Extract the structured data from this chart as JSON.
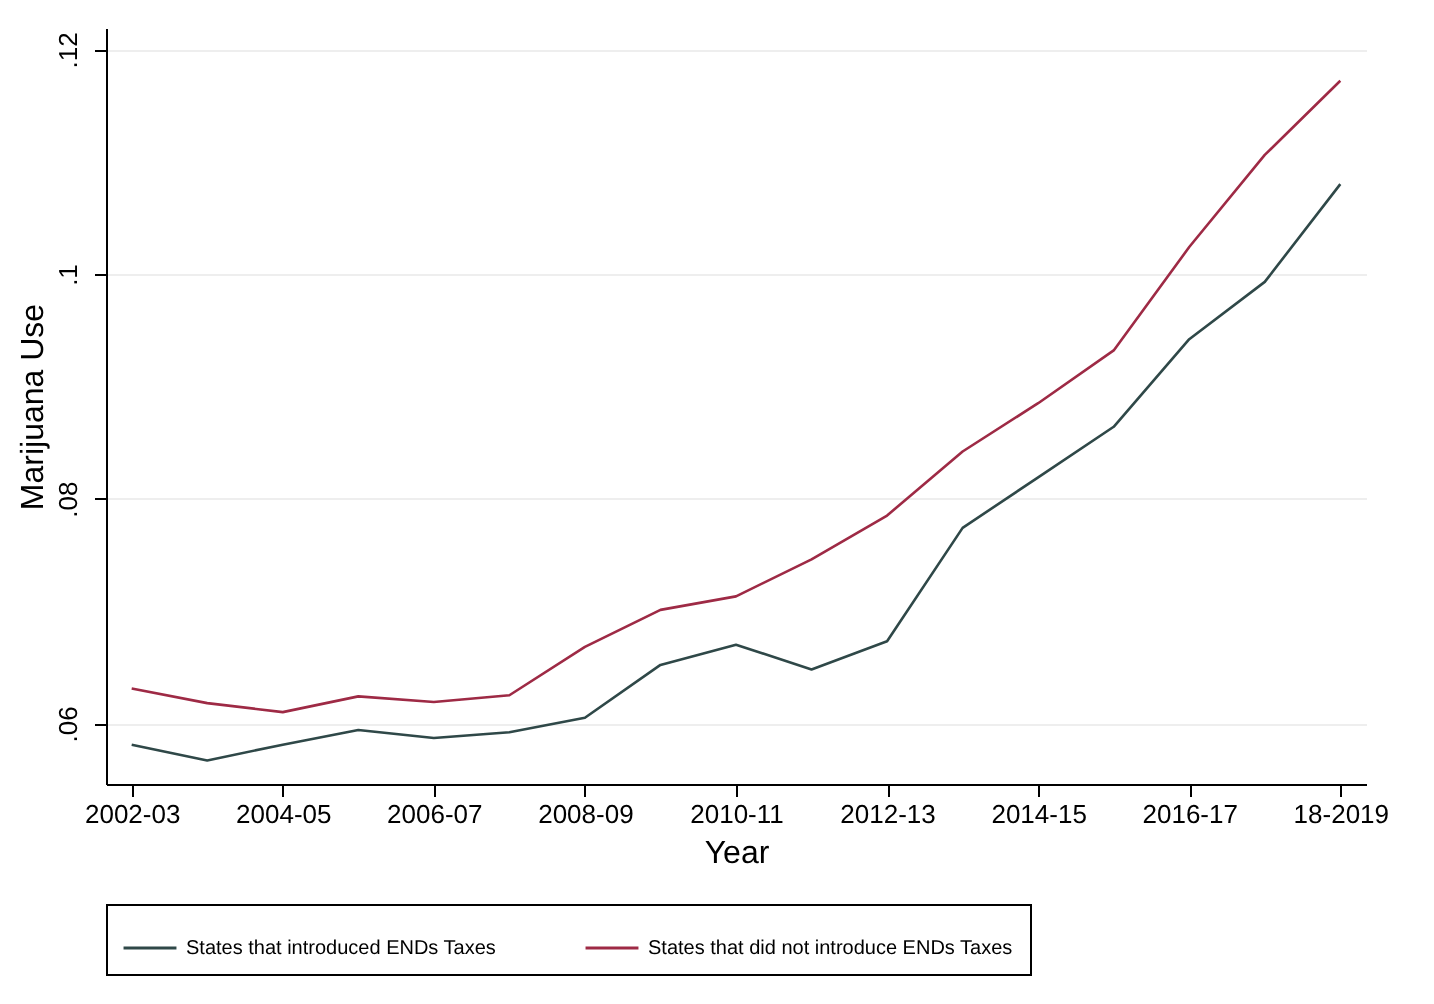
{
  "chart_data": {
    "type": "line",
    "xlabel": "Year",
    "ylabel": "Marijuana Use",
    "categories": [
      "2002-03",
      null,
      "2004-05",
      null,
      "2006-07",
      null,
      "2008-09",
      null,
      "2010-11",
      null,
      "2012-13",
      null,
      "2014-15",
      null,
      "2016-17",
      null,
      "18-2019"
    ],
    "series": [
      {
        "name": "States that introduced ENDs Taxes",
        "color": "#2f4848",
        "values": [
          0.0581,
          0.0567,
          0.0581,
          0.0594,
          0.0587,
          0.0592,
          0.0605,
          0.0652,
          0.067,
          0.0648,
          0.0673,
          0.0774,
          0.0819,
          0.0864,
          0.0942,
          0.0993,
          0.108
        ]
      },
      {
        "name": "States that did not introduce ENDs Taxes",
        "color": "#9e2a45",
        "values": [
          0.0631,
          0.0618,
          0.061,
          0.0624,
          0.0619,
          0.0625,
          0.0668,
          0.0701,
          0.0713,
          0.0746,
          0.0785,
          0.0842,
          0.0885,
          0.0932,
          0.1024,
          0.1106,
          0.1172
        ]
      }
    ],
    "ylim": [
      0.0546,
      0.1219
    ],
    "yticks": [
      {
        "value": 0.06,
        "label": ".06"
      },
      {
        "value": 0.08,
        "label": ".08"
      },
      {
        "value": 0.1,
        "label": ".1"
      },
      {
        "value": 0.12,
        "label": ".12"
      }
    ],
    "grid": "y",
    "legend": "bottom"
  }
}
